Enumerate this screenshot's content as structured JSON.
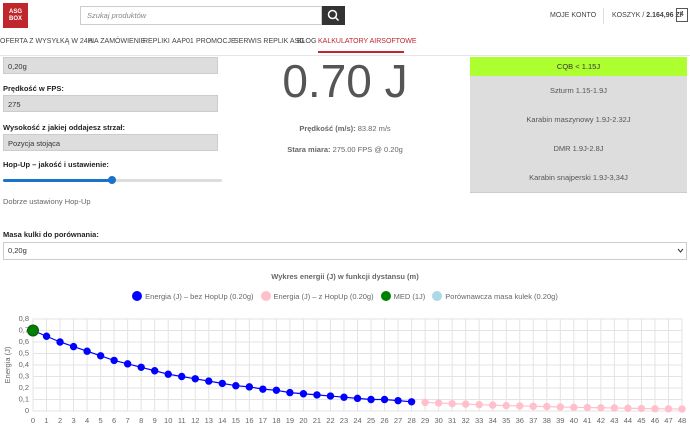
{
  "header": {
    "logo": [
      "ASG",
      "BOX"
    ],
    "search_placeholder": "Szukaj produktów",
    "account": "MOJE KONTO",
    "cart_label": "KOSZYK /",
    "cart_total": "2.164,96 Zł",
    "cart_count": "4"
  },
  "nav": [
    "OFERTA Z WYSYŁKĄ W 24H",
    "NA ZAMÓWIENIE",
    "REPLIKI",
    "AAP01",
    "PROMOCJE",
    "SERWIS REPLIK ASG",
    "BLOG",
    "KALKULATORY AIRSOFTOWE"
  ],
  "form": {
    "mass_value": "0,20g",
    "fps_label": "Prędkość w FPS:",
    "fps_value": "275",
    "height_label": "Wysokość z jakiej oddajesz strzał:",
    "height_value": "Pozycja stojąca",
    "hopup_label": "Hop-Up – jakość i ustawienie:",
    "hopup_description": "Dobrze ustawiony Hop-Up",
    "compare_label": "Masa kulki do porównania:",
    "compare_value": "0,20g"
  },
  "result": {
    "energy": "0.70 J",
    "speed_label": "Prędkość (m/s):",
    "speed_value": "83.82 m/s",
    "old_label": "Stara miara:",
    "old_value": "275.00 FPS @ 0.20g"
  },
  "classes": [
    {
      "label": "CQB < 1.15J",
      "active": true
    },
    {
      "label": "Szturm 1.15-1.9J",
      "active": false
    },
    {
      "label": "Karabin maszynowy 1.9J-2.32J",
      "active": false
    },
    {
      "label": "DMR 1.9J-2.8J",
      "active": false
    },
    {
      "label": "Karabin snajperski 1.9J-3,34J",
      "active": false
    }
  ],
  "chart_data": {
    "type": "line",
    "title": "Wykres energii (J) w funkcji dystansu (m)",
    "y_label": "Energia (J)",
    "grid": true,
    "xlim": [
      0,
      48
    ],
    "xticks": [
      0,
      1,
      2,
      3,
      4,
      5,
      6,
      7,
      8,
      9,
      10,
      11,
      12,
      13,
      14,
      15,
      16,
      17,
      18,
      19,
      20,
      21,
      22,
      23,
      24,
      25,
      26,
      27,
      28,
      29,
      30,
      31,
      32,
      33,
      34,
      35,
      36,
      37,
      38,
      39,
      40,
      41,
      42,
      43,
      44,
      45,
      46,
      47,
      48
    ],
    "ylim": [
      0,
      0.8
    ],
    "yticks": [
      0,
      {
        "value": 0.1,
        "label": "0,1"
      },
      {
        "value": 0.2,
        "label": "0,2"
      },
      {
        "value": 0.3,
        "label": "0,3"
      },
      {
        "value": 0.4,
        "label": "0,4"
      },
      {
        "value": 0.5,
        "label": "0,5"
      },
      {
        "value": 0.6,
        "label": "0,6"
      },
      {
        "value": 0.7,
        "label": "0,7"
      },
      {
        "value": 0.8,
        "label": "0,8"
      }
    ],
    "series": [
      {
        "name": "Energia (J) – bez HopUp (0.20g)",
        "color": "#0000ff",
        "x": [
          0,
          1,
          2,
          3,
          4,
          5,
          6,
          7,
          8,
          9,
          10,
          11,
          12,
          13,
          14,
          15,
          16,
          17,
          18,
          19,
          20,
          21,
          22,
          23,
          24,
          25,
          26,
          27,
          28
        ],
        "values": [
          0.7,
          0.65,
          0.6,
          0.56,
          0.52,
          0.48,
          0.44,
          0.41,
          0.38,
          0.35,
          0.32,
          0.3,
          0.28,
          0.26,
          0.24,
          0.22,
          0.21,
          0.19,
          0.18,
          0.16,
          0.15,
          0.14,
          0.13,
          0.12,
          0.11,
          0.1,
          0.1,
          0.09,
          0.08
        ]
      },
      {
        "name": "Energia (J) – z HopUp (0.20g)",
        "color": "#ffc0cb",
        "x": [
          29,
          30,
          31,
          32,
          33,
          34,
          35,
          36,
          37,
          38,
          39,
          40,
          41,
          42,
          43,
          44,
          45,
          46,
          47,
          48
        ],
        "values": [
          0.075,
          0.07,
          0.064,
          0.06,
          0.055,
          0.051,
          0.047,
          0.044,
          0.041,
          0.038,
          0.035,
          0.032,
          0.03,
          0.028,
          0.026,
          0.024,
          0.022,
          0.02,
          0.019,
          0.017
        ]
      },
      {
        "name": "MED (1J)",
        "color": "#008000",
        "x": [
          0
        ],
        "values": [
          0.7
        ]
      },
      {
        "name": "Porównawcza masa kulek (0.20g)",
        "color": "#add8e6",
        "x": [],
        "values": []
      }
    ]
  }
}
